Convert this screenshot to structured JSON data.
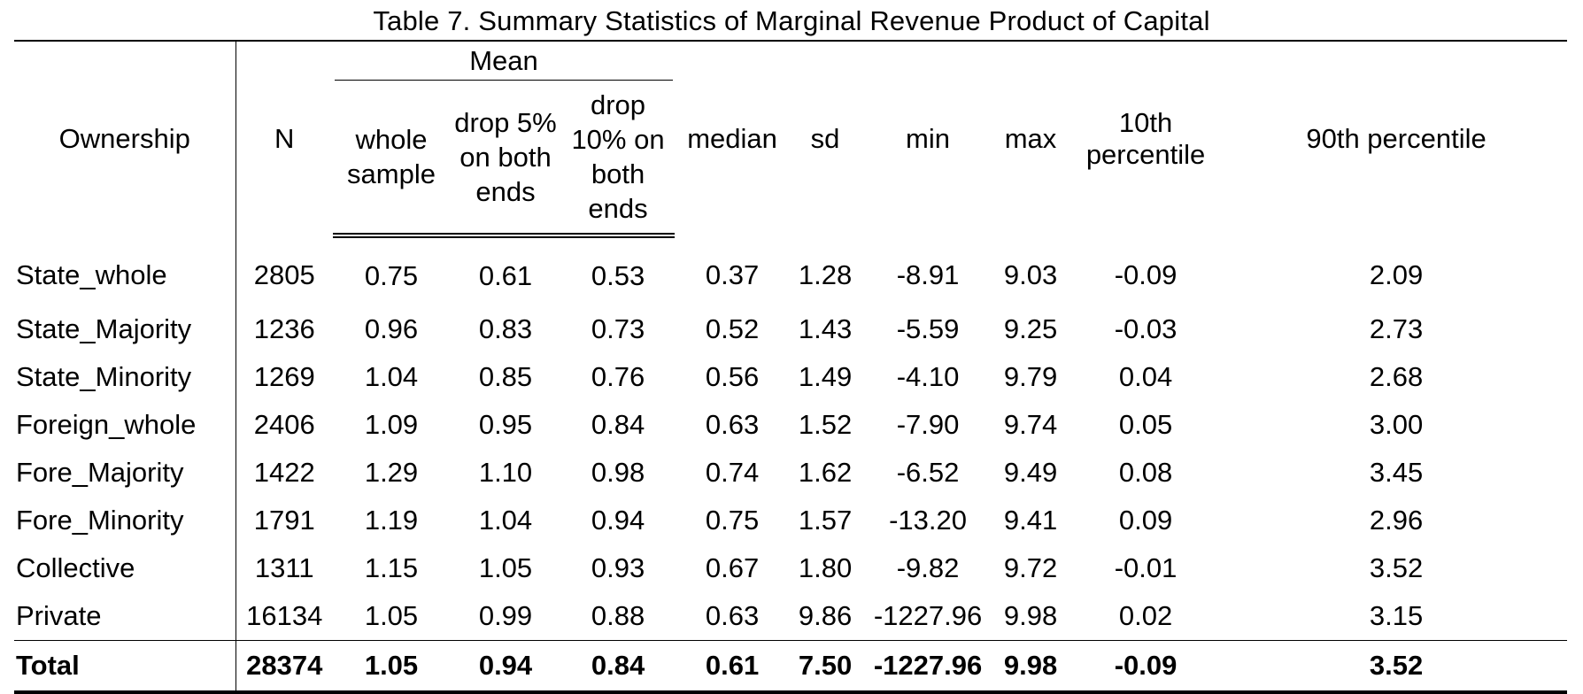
{
  "title": "Table 7. Summary Statistics of Marginal Revenue Product of Capital",
  "headers": {
    "ownership": "Ownership",
    "n": "N",
    "mean_group": "Mean",
    "whole_sample": "whole sample",
    "drop5": "drop 5% on both ends",
    "drop10": "drop 10% on both ends",
    "median": "median",
    "sd": "sd",
    "min": "min",
    "max": "max",
    "p10": "10th percentile",
    "p90": "90th percentile"
  },
  "rows": [
    [
      "State_whole",
      "2805",
      "0.75",
      "0.61",
      "0.53",
      "0.37",
      "1.28",
      "-8.91",
      "9.03",
      "-0.09",
      "2.09"
    ],
    [
      "State_Majority",
      "1236",
      "0.96",
      "0.83",
      "0.73",
      "0.52",
      "1.43",
      "-5.59",
      "9.25",
      "-0.03",
      "2.73"
    ],
    [
      "State_Minority",
      "1269",
      "1.04",
      "0.85",
      "0.76",
      "0.56",
      "1.49",
      "-4.10",
      "9.79",
      "0.04",
      "2.68"
    ],
    [
      "Foreign_whole",
      "2406",
      "1.09",
      "0.95",
      "0.84",
      "0.63",
      "1.52",
      "-7.90",
      "9.74",
      "0.05",
      "3.00"
    ],
    [
      "Fore_Majority",
      "1422",
      "1.29",
      "1.10",
      "0.98",
      "0.74",
      "1.62",
      "-6.52",
      "9.49",
      "0.08",
      "3.45"
    ],
    [
      "Fore_Minority",
      "1791",
      "1.19",
      "1.04",
      "0.94",
      "0.75",
      "1.57",
      "-13.20",
      "9.41",
      "0.09",
      "2.96"
    ],
    [
      "Collective",
      "1311",
      "1.15",
      "1.05",
      "0.93",
      "0.67",
      "1.80",
      "-9.82",
      "9.72",
      "-0.01",
      "3.52"
    ],
    [
      "Private",
      "16134",
      "1.05",
      "0.99",
      "0.88",
      "0.63",
      "9.86",
      "-1227.96",
      "9.98",
      "0.02",
      "3.15"
    ]
  ],
  "total": [
    "Total",
    "28374",
    "1.05",
    "0.94",
    "0.84",
    "0.61",
    "7.50",
    "-1227.96",
    "9.98",
    "-0.09",
    "3.52"
  ]
}
